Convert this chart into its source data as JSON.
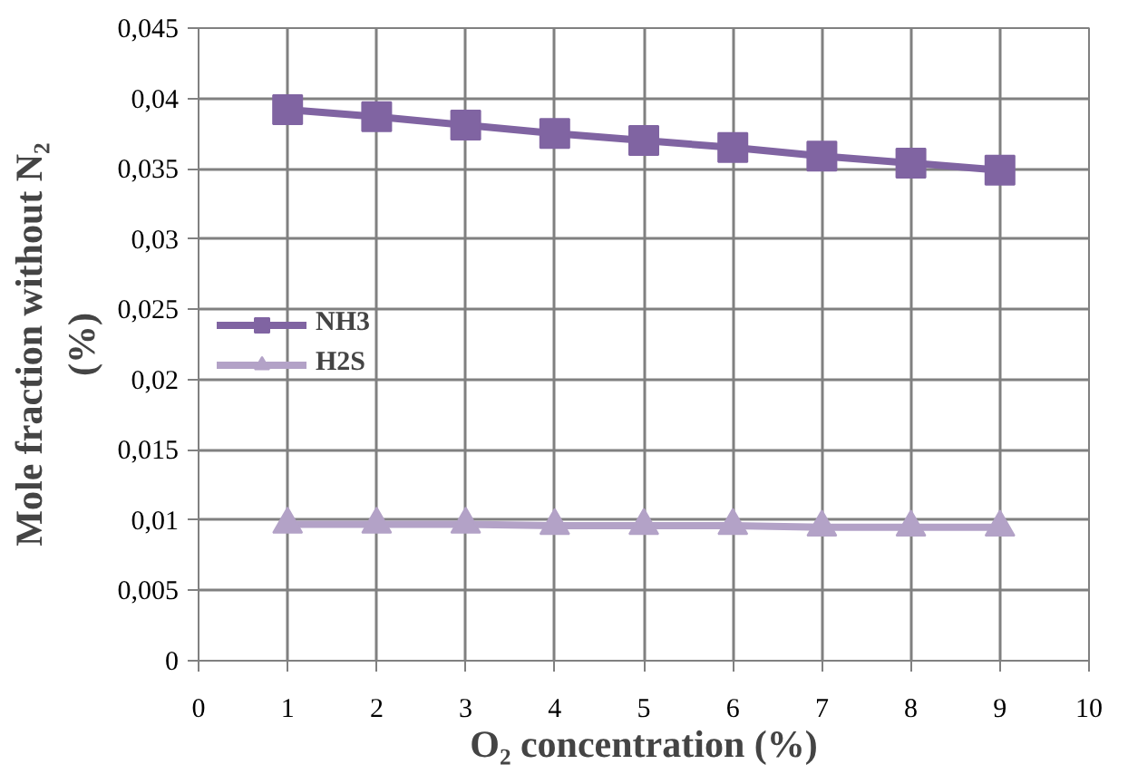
{
  "chart_data": {
    "type": "line",
    "xlabel": "O₂ concentration (%)",
    "ylabel": "Mole fraction without N₂ (%)",
    "x": [
      1,
      2,
      3,
      4,
      5,
      6,
      7,
      8,
      9
    ],
    "series": [
      {
        "name": "NH3",
        "color": "#8064a2",
        "marker": "square",
        "values": [
          0.0392,
          0.0387,
          0.0381,
          0.0375,
          0.037,
          0.0365,
          0.0359,
          0.0354,
          0.0349
        ]
      },
      {
        "name": "H2S",
        "color": "#b3a2c7",
        "marker": "triangle",
        "values": [
          0.0097,
          0.0097,
          0.0097,
          0.0096,
          0.0096,
          0.0096,
          0.0095,
          0.0095,
          0.0095
        ]
      }
    ],
    "xlim": [
      0,
      10
    ],
    "xticks": [
      0,
      1,
      2,
      3,
      4,
      5,
      6,
      7,
      8,
      9,
      10
    ],
    "ylim": [
      0,
      0.045
    ],
    "yticks": [
      0,
      {
        "value": 0.005,
        "label": "0,005"
      },
      {
        "value": 0.01,
        "label": "0,01"
      },
      {
        "value": 0.015,
        "label": "0,015"
      },
      {
        "value": 0.02,
        "label": "0,02"
      },
      {
        "value": 0.025,
        "label": "0,025"
      },
      {
        "value": 0.03,
        "label": "0,03"
      },
      {
        "value": 0.035,
        "label": "0,035"
      },
      {
        "value": 0.04,
        "label": "0,04"
      },
      {
        "value": 0.045,
        "label": "0,045"
      }
    ],
    "grid": true,
    "legend": "left",
    "line_style": "solid"
  }
}
